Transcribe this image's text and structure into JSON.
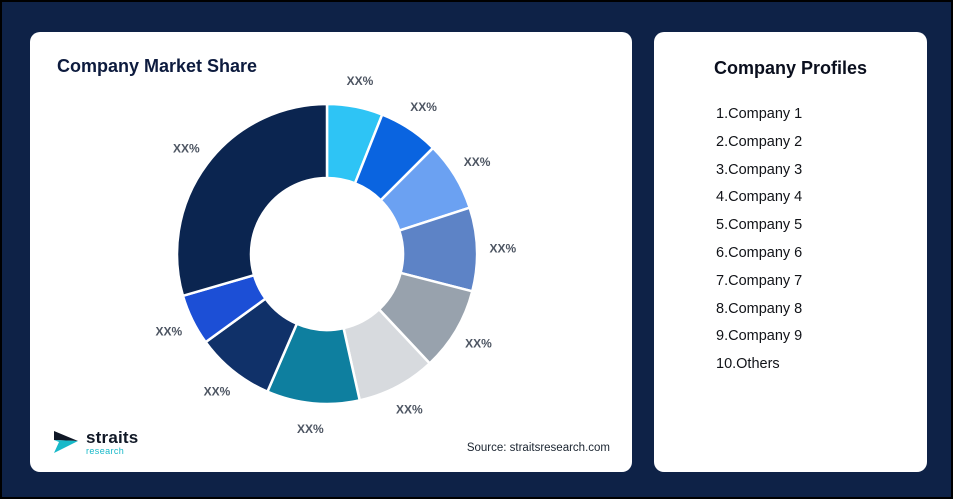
{
  "left_card": {
    "title": "Company Market Share",
    "source": "Source: straitsresearch.com",
    "logo": {
      "name": "straits",
      "sub": "research"
    }
  },
  "right_card": {
    "title": "Company Profiles",
    "items": [
      "1.Company 1",
      "2.Company 2",
      "3.Company 3",
      "4.Company 4",
      "5.Company 5",
      "6.Company 6",
      "7.Company 7",
      "8.Company 8",
      "9.Company 9",
      "10.Others"
    ]
  },
  "chart_data": {
    "type": "pie",
    "donut": true,
    "title": "Company Market Share",
    "labels": [
      "XX%",
      "XX%",
      "XX%",
      "XX%",
      "XX%",
      "XX%",
      "XX%",
      "XX%",
      "XX%",
      "XX%"
    ],
    "values": [
      6,
      6.5,
      7.5,
      9,
      9,
      8.5,
      10,
      8.5,
      5.5,
      29.5
    ],
    "colors": [
      "#2ec4f5",
      "#0a64e0",
      "#6ba1f2",
      "#5d83c6",
      "#98a2ad",
      "#d7dade",
      "#0e7f9f",
      "#103169",
      "#1c4fd6",
      "#0b2550"
    ],
    "start_angle_deg": 0,
    "legend": "none"
  },
  "colors": {
    "page_bg": "#0e2247",
    "card_bg": "#ffffff",
    "title_text": "#0d1b3e",
    "label_text": "#4d5562",
    "logo_teal": "#18b9c9",
    "logo_navy": "#101826"
  }
}
